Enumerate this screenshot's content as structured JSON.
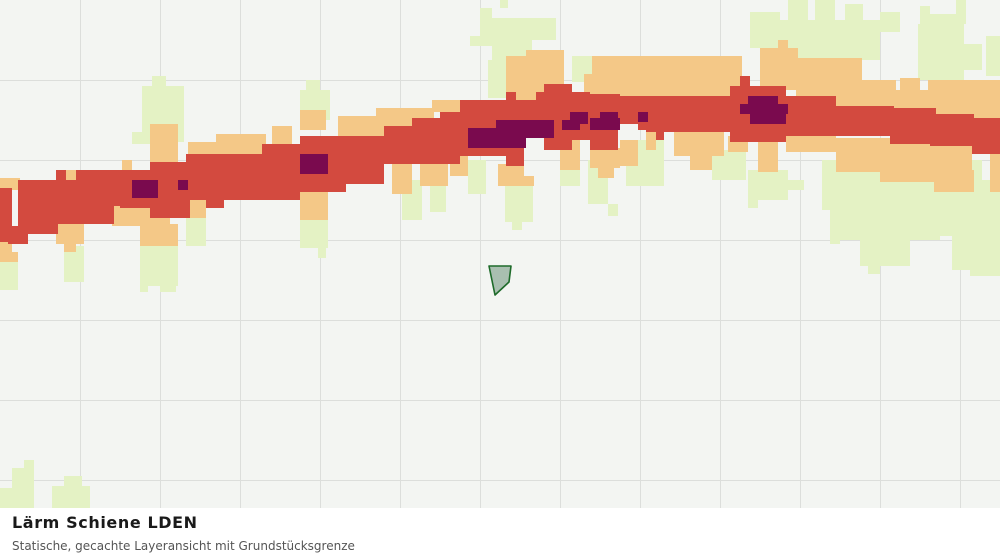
{
  "caption": {
    "title": "Lärm Schiene LDEN",
    "subtitle": "Statische, gecachte Layeransicht mit Grundstücksgrenze"
  },
  "map": {
    "background_color": "#f3f5f2",
    "grid_color": "#dcdedb",
    "noise_class_colors": {
      "class_1_lowest": "#e4f2c4",
      "class_2": "#f4c887",
      "class_3": "#d34a3f",
      "class_4_highest": "#7a0a4e"
    },
    "parcel_boundary": {
      "fill_color": "#a9bfb0",
      "stroke_color": "#1e6b2a"
    }
  }
}
